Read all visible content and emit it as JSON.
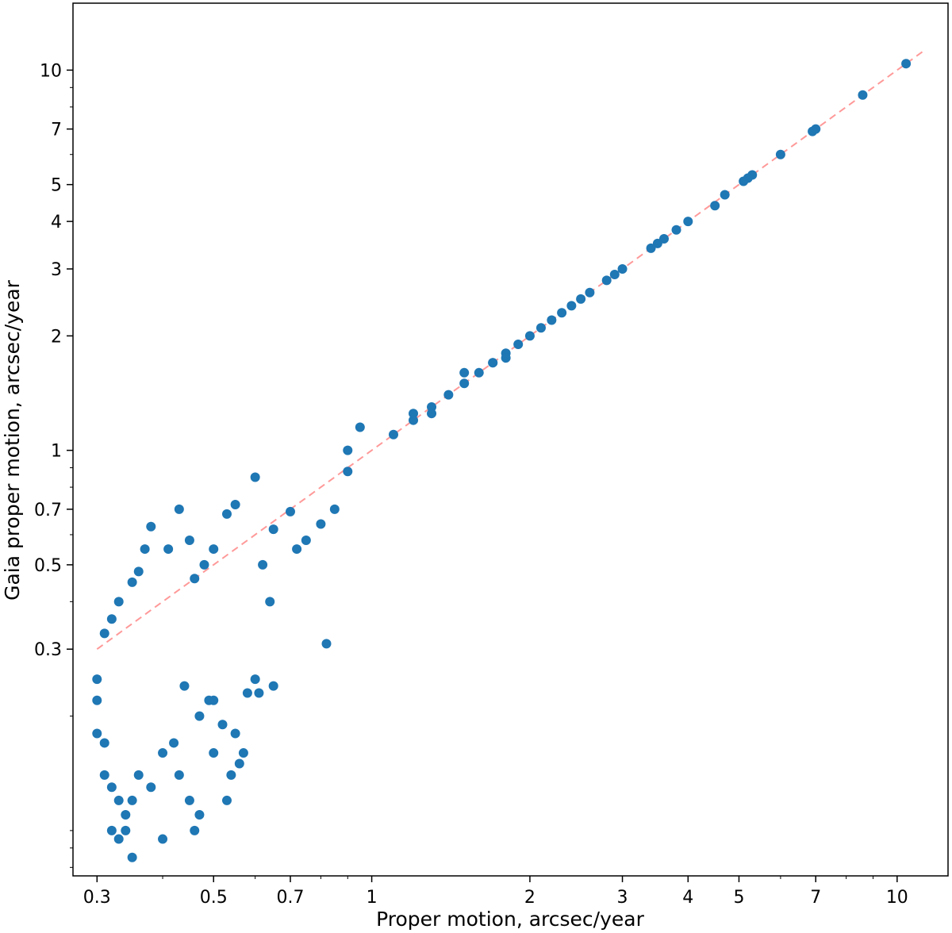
{
  "chart_data": {
    "type": "scatter",
    "title": "",
    "xlabel": "Proper motion, arcsec/year",
    "ylabel": "Gaia proper motion, arcsec/year",
    "xscale": "log",
    "yscale": "log",
    "xlim": [
      0.27,
      12.5
    ],
    "ylim": [
      0.076,
      15
    ],
    "xticks": [
      0.3,
      0.5,
      0.7,
      1,
      2,
      3,
      4,
      5,
      7,
      10
    ],
    "xtick_labels": [
      "0.3",
      "0.5",
      "0.7",
      "1",
      "2",
      "3",
      "4",
      "5",
      "7",
      "10"
    ],
    "yticks": [
      0.3,
      0.5,
      0.7,
      1,
      2,
      3,
      4,
      5,
      7,
      10
    ],
    "ytick_labels": [
      "0.3",
      "0.5",
      "0.7",
      "1",
      "2",
      "3",
      "4",
      "5",
      "7",
      "10"
    ],
    "grid": false,
    "legend": "none",
    "marker_color": "#1f77b4",
    "reference_line": {
      "style": "dashed",
      "color": "#ff9999",
      "x": [
        0.3,
        11.3
      ],
      "y": [
        0.3,
        11.3
      ]
    },
    "series": [
      {
        "points": [
          [
            10.4,
            10.4
          ],
          [
            8.6,
            8.6
          ],
          [
            7.0,
            7.0
          ],
          [
            6.9,
            6.9
          ],
          [
            6.0,
            6.0
          ],
          [
            5.3,
            5.3
          ],
          [
            5.2,
            5.2
          ],
          [
            5.1,
            5.1
          ],
          [
            4.7,
            4.7
          ],
          [
            4.5,
            4.4
          ],
          [
            4.0,
            4.0
          ],
          [
            3.8,
            3.8
          ],
          [
            3.6,
            3.6
          ],
          [
            3.5,
            3.5
          ],
          [
            3.4,
            3.4
          ],
          [
            3.0,
            3.0
          ],
          [
            2.9,
            2.9
          ],
          [
            2.8,
            2.8
          ],
          [
            2.6,
            2.6
          ],
          [
            2.5,
            2.5
          ],
          [
            2.4,
            2.4
          ],
          [
            2.3,
            2.3
          ],
          [
            2.2,
            2.2
          ],
          [
            2.1,
            2.1
          ],
          [
            2.0,
            2.0
          ],
          [
            1.9,
            1.9
          ],
          [
            1.8,
            1.8
          ],
          [
            1.7,
            1.7
          ],
          [
            1.6,
            1.6
          ],
          [
            1.5,
            1.5
          ],
          [
            1.4,
            1.4
          ],
          [
            1.3,
            1.3
          ],
          [
            1.2,
            1.2
          ],
          [
            1.1,
            1.1
          ],
          [
            1.5,
            1.6
          ],
          [
            1.7,
            1.7
          ],
          [
            1.2,
            1.25
          ],
          [
            1.3,
            1.25
          ],
          [
            1.8,
            1.75
          ],
          [
            0.95,
            1.15
          ],
          [
            0.9,
            1.0
          ],
          [
            0.9,
            0.88
          ],
          [
            0.85,
            0.7
          ],
          [
            0.82,
            0.31
          ],
          [
            0.8,
            0.64
          ],
          [
            0.75,
            0.58
          ],
          [
            0.72,
            0.55
          ],
          [
            0.7,
            0.69
          ],
          [
            0.65,
            0.62
          ],
          [
            0.6,
            0.85
          ],
          [
            0.55,
            0.72
          ],
          [
            0.53,
            0.68
          ],
          [
            0.5,
            0.55
          ],
          [
            0.48,
            0.5
          ],
          [
            0.46,
            0.46
          ],
          [
            0.45,
            0.58
          ],
          [
            0.43,
            0.7
          ],
          [
            0.41,
            0.55
          ],
          [
            0.38,
            0.63
          ],
          [
            0.37,
            0.55
          ],
          [
            0.36,
            0.48
          ],
          [
            0.35,
            0.45
          ],
          [
            0.33,
            0.4
          ],
          [
            0.32,
            0.36
          ],
          [
            0.31,
            0.33
          ],
          [
            0.62,
            0.5
          ],
          [
            0.64,
            0.4
          ],
          [
            0.6,
            0.25
          ],
          [
            0.61,
            0.23
          ],
          [
            0.58,
            0.23
          ],
          [
            0.65,
            0.24
          ],
          [
            0.5,
            0.22
          ],
          [
            0.52,
            0.19
          ],
          [
            0.55,
            0.18
          ],
          [
            0.56,
            0.15
          ],
          [
            0.53,
            0.12
          ],
          [
            0.49,
            0.22
          ],
          [
            0.47,
            0.2
          ],
          [
            0.44,
            0.24
          ],
          [
            0.42,
            0.17
          ],
          [
            0.4,
            0.16
          ],
          [
            0.38,
            0.13
          ],
          [
            0.36,
            0.14
          ],
          [
            0.35,
            0.12
          ],
          [
            0.34,
            0.11
          ],
          [
            0.33,
            0.12
          ],
          [
            0.32,
            0.13
          ],
          [
            0.31,
            0.14
          ],
          [
            0.3,
            0.25
          ],
          [
            0.3,
            0.22
          ],
          [
            0.3,
            0.18
          ],
          [
            0.31,
            0.17
          ],
          [
            0.32,
            0.1
          ],
          [
            0.33,
            0.095
          ],
          [
            0.34,
            0.1
          ],
          [
            0.35,
            0.085
          ],
          [
            0.4,
            0.095
          ],
          [
            0.46,
            0.1
          ],
          [
            0.47,
            0.11
          ],
          [
            0.45,
            0.12
          ],
          [
            0.5,
            0.16
          ],
          [
            0.54,
            0.14
          ],
          [
            0.57,
            0.16
          ],
          [
            0.43,
            0.14
          ]
        ]
      }
    ]
  }
}
